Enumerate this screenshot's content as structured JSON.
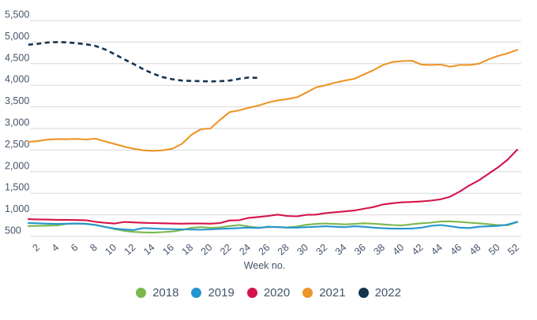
{
  "chart_data": {
    "type": "line",
    "title": "",
    "xlabel": "Week no.",
    "ylabel": "",
    "grid": "horizontal",
    "gridline_color": "#d9d9d9",
    "text_color": "#44546a",
    "legend_position": "bottom",
    "xlim": [
      1,
      52
    ],
    "ylim": [
      500,
      5500
    ],
    "x_weeks": [
      1,
      2,
      3,
      4,
      5,
      6,
      7,
      8,
      9,
      10,
      11,
      12,
      13,
      14,
      15,
      16,
      17,
      18,
      19,
      20,
      21,
      22,
      23,
      24,
      25,
      26,
      27,
      28,
      29,
      30,
      31,
      32,
      33,
      34,
      35,
      36,
      37,
      38,
      39,
      40,
      41,
      42,
      43,
      44,
      45,
      46,
      47,
      48,
      49,
      50,
      51,
      52
    ],
    "xticks": [
      2,
      4,
      6,
      8,
      10,
      12,
      14,
      16,
      18,
      20,
      22,
      24,
      26,
      28,
      30,
      32,
      34,
      36,
      38,
      40,
      42,
      44,
      46,
      48,
      50,
      52
    ],
    "yticks": [
      {
        "value": 500,
        "label": "500"
      },
      {
        "value": 1000,
        "label": "1,000"
      },
      {
        "value": 1500,
        "label": "1,500"
      },
      {
        "value": 2000,
        "label": "2,000"
      },
      {
        "value": 2500,
        "label": "2,500"
      },
      {
        "value": 3000,
        "label": "3,000"
      },
      {
        "value": 3500,
        "label": "3,500"
      },
      {
        "value": 4000,
        "label": "4,000"
      },
      {
        "value": 4500,
        "label": "4,500"
      },
      {
        "value": 5000,
        "label": "5,000"
      },
      {
        "value": 5500,
        "label": "5,500"
      }
    ],
    "series": [
      {
        "name": "2018",
        "color": "#7bb74d",
        "dash": "solid",
        "values": [
          740,
          745,
          750,
          755,
          790,
          800,
          795,
          770,
          720,
          670,
          630,
          605,
          595,
          590,
          600,
          615,
          650,
          700,
          715,
          700,
          710,
          740,
          765,
          730,
          705,
          715,
          720,
          710,
          730,
          770,
          790,
          800,
          790,
          780,
          790,
          805,
          795,
          780,
          765,
          755,
          785,
          805,
          820,
          845,
          850,
          835,
          820,
          805,
          785,
          765,
          760,
          830
        ]
      },
      {
        "name": "2019",
        "color": "#2595d1",
        "dash": "solid",
        "values": [
          810,
          805,
          795,
          790,
          795,
          800,
          790,
          765,
          720,
          685,
          660,
          650,
          695,
          685,
          675,
          670,
          665,
          660,
          655,
          665,
          675,
          685,
          695,
          705,
          695,
          725,
          715,
          705,
          705,
          715,
          725,
          735,
          725,
          715,
          735,
          725,
          705,
          690,
          680,
          680,
          685,
          705,
          745,
          765,
          735,
          705,
          695,
          725,
          735,
          745,
          775,
          840
        ]
      },
      {
        "name": "2020",
        "color": "#d5134a",
        "dash": "solid",
        "values": [
          900,
          895,
          890,
          885,
          885,
          880,
          875,
          840,
          815,
          800,
          835,
          825,
          815,
          810,
          805,
          800,
          795,
          800,
          800,
          795,
          810,
          870,
          875,
          930,
          950,
          975,
          1005,
          975,
          965,
          1000,
          1005,
          1040,
          1060,
          1080,
          1100,
          1140,
          1180,
          1240,
          1270,
          1290,
          1300,
          1310,
          1330,
          1360,
          1420,
          1540,
          1680,
          1800,
          1950,
          2100,
          2280,
          2510
        ]
      },
      {
        "name": "2021",
        "color": "#ee9428",
        "dash": "solid",
        "values": [
          2690,
          2710,
          2740,
          2755,
          2750,
          2760,
          2745,
          2765,
          2700,
          2640,
          2580,
          2530,
          2495,
          2480,
          2495,
          2530,
          2640,
          2850,
          2985,
          3000,
          3200,
          3380,
          3420,
          3480,
          3530,
          3600,
          3650,
          3680,
          3720,
          3830,
          3950,
          4000,
          4060,
          4110,
          4150,
          4250,
          4350,
          4470,
          4540,
          4560,
          4570,
          4480,
          4470,
          4480,
          4430,
          4470,
          4470,
          4500,
          4600,
          4680,
          4740,
          4820
        ]
      },
      {
        "name": "2022",
        "color": "#14334f",
        "dash": "dashed",
        "values": [
          4940,
          4960,
          4990,
          5000,
          4995,
          4975,
          4950,
          4910,
          4830,
          4720,
          4600,
          4490,
          4370,
          4270,
          4190,
          4140,
          4110,
          4100,
          4095,
          4090,
          4095,
          4110,
          4150,
          4180,
          4170
        ]
      }
    ]
  }
}
